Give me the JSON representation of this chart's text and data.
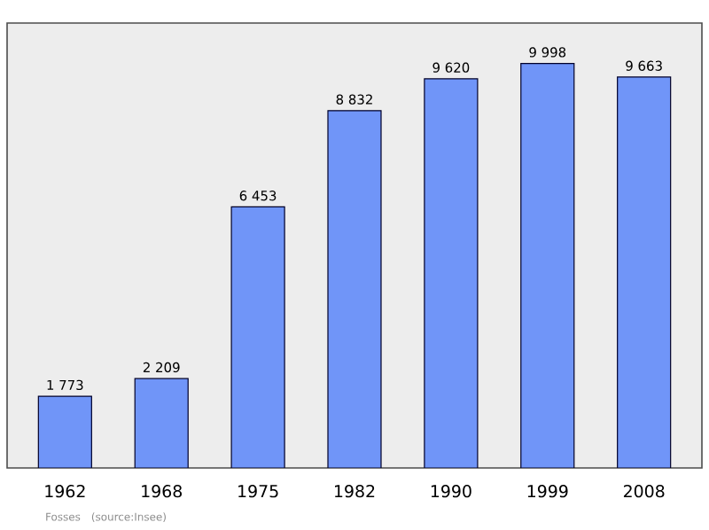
{
  "chart_data": {
    "type": "bar",
    "categories": [
      "1962",
      "1968",
      "1975",
      "1982",
      "1990",
      "1999",
      "2008"
    ],
    "values": [
      1773,
      2209,
      6453,
      8832,
      9620,
      9998,
      9663
    ],
    "value_labels": [
      "1 773",
      "2 209",
      "6 453",
      "8 832",
      "9 620",
      "9 998",
      "9 663"
    ],
    "color": "#7095f8",
    "annotations": [
      "Fosses",
      "(source:Insee)"
    ]
  }
}
